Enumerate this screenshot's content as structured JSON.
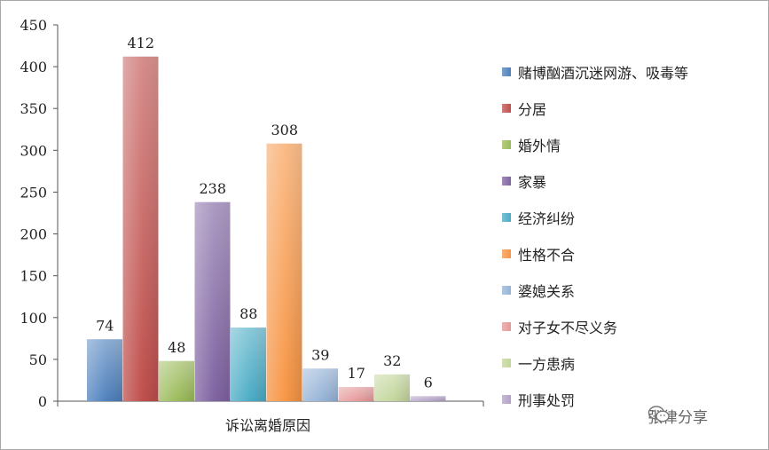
{
  "chart_data": {
    "type": "bar",
    "categories": [
      "诉讼离婚原因"
    ],
    "ylim": [
      0,
      450
    ],
    "yticks": [
      0,
      50,
      100,
      150,
      200,
      250,
      300,
      350,
      400,
      450
    ],
    "grid": false,
    "legend_position": "right",
    "series": [
      {
        "name": "赌博酗酒沉迷网游、吸毒等",
        "values": [
          74
        ],
        "color": "#4f81bd"
      },
      {
        "name": "分居",
        "values": [
          412
        ],
        "color": "#c0504d"
      },
      {
        "name": "婚外情",
        "values": [
          48
        ],
        "color": "#9bbb59"
      },
      {
        "name": "家暴",
        "values": [
          238
        ],
        "color": "#8064a2"
      },
      {
        "name": "经济纠纷",
        "values": [
          88
        ],
        "color": "#4bacc6"
      },
      {
        "name": "性格不合",
        "values": [
          308
        ],
        "color": "#f79646"
      },
      {
        "name": "婆媳关系",
        "values": [
          39
        ],
        "color": "#95b3d7"
      },
      {
        "name": "对子女不尽义务",
        "values": [
          17
        ],
        "color": "#e6999a"
      },
      {
        "name": "一方患病",
        "values": [
          32
        ],
        "color": "#c3d69b"
      },
      {
        "name": "刑事处罚",
        "values": [
          6
        ],
        "color": "#b3a2c7"
      }
    ]
  },
  "watermark": {
    "text": "张律分享",
    "icon": "wechat-icon"
  }
}
